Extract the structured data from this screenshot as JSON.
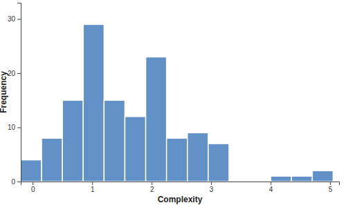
{
  "chart_data": {
    "type": "histogram",
    "x_label": "Complexity",
    "y_label": "Frequency",
    "bins": [
      -0.2,
      0.15,
      0.5,
      0.85,
      1.2,
      1.55,
      1.9,
      2.25,
      2.6,
      2.95,
      3.3,
      3.65,
      4.0,
      4.35,
      4.7,
      5.05
    ],
    "counts": [
      4,
      8,
      15,
      29,
      15,
      12,
      23,
      8,
      9,
      7,
      0,
      0,
      1,
      1,
      2
    ],
    "color": "#6191c6",
    "xlim": [
      -0.2,
      5.15
    ],
    "xticks": [
      0,
      1,
      2,
      3,
      4,
      5
    ],
    "ylim": [
      0,
      33
    ],
    "yticks": [
      0,
      10,
      20,
      30
    ],
    "grid": false
  }
}
